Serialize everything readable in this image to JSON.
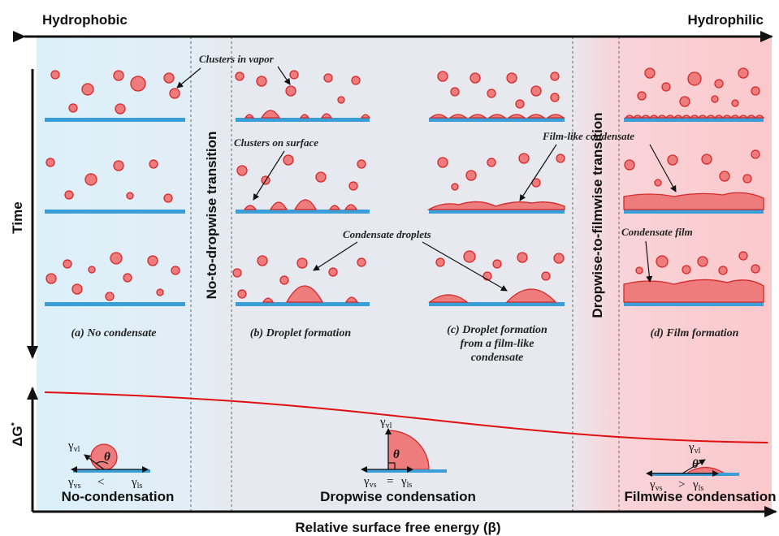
{
  "header": {
    "left": "Hydrophobic",
    "right": "Hydrophilic"
  },
  "axes": {
    "time": "Time",
    "energy": {
      "symbol": "ΔG",
      "sup": "*"
    },
    "x_label": "Relative surface free energy (β)"
  },
  "transitions": [
    "No-to-dropwise transition",
    "Dropwise-to-filmwise transition"
  ],
  "annotations": [
    "Clusters in vapor",
    "Clusters on surface",
    "Condensate droplets",
    "Film-like condensate",
    "Condensate film"
  ],
  "panels": [
    {
      "caption": [
        "(a) No condensate"
      ]
    },
    {
      "caption": [
        "(b) Droplet formation"
      ]
    },
    {
      "caption": [
        "(c) Droplet formation",
        "from a film-like",
        "condensate"
      ]
    },
    {
      "caption": [
        "(d) Film formation"
      ]
    }
  ],
  "regimes": [
    "No-condensation",
    "Dropwise condensation",
    "Filmwise condensation"
  ],
  "tension": {
    "gamma": "γ",
    "subscripts": [
      "vl",
      "vs",
      "ls"
    ],
    "theta": "θ",
    "relations": [
      "<",
      "=",
      ">"
    ]
  }
}
